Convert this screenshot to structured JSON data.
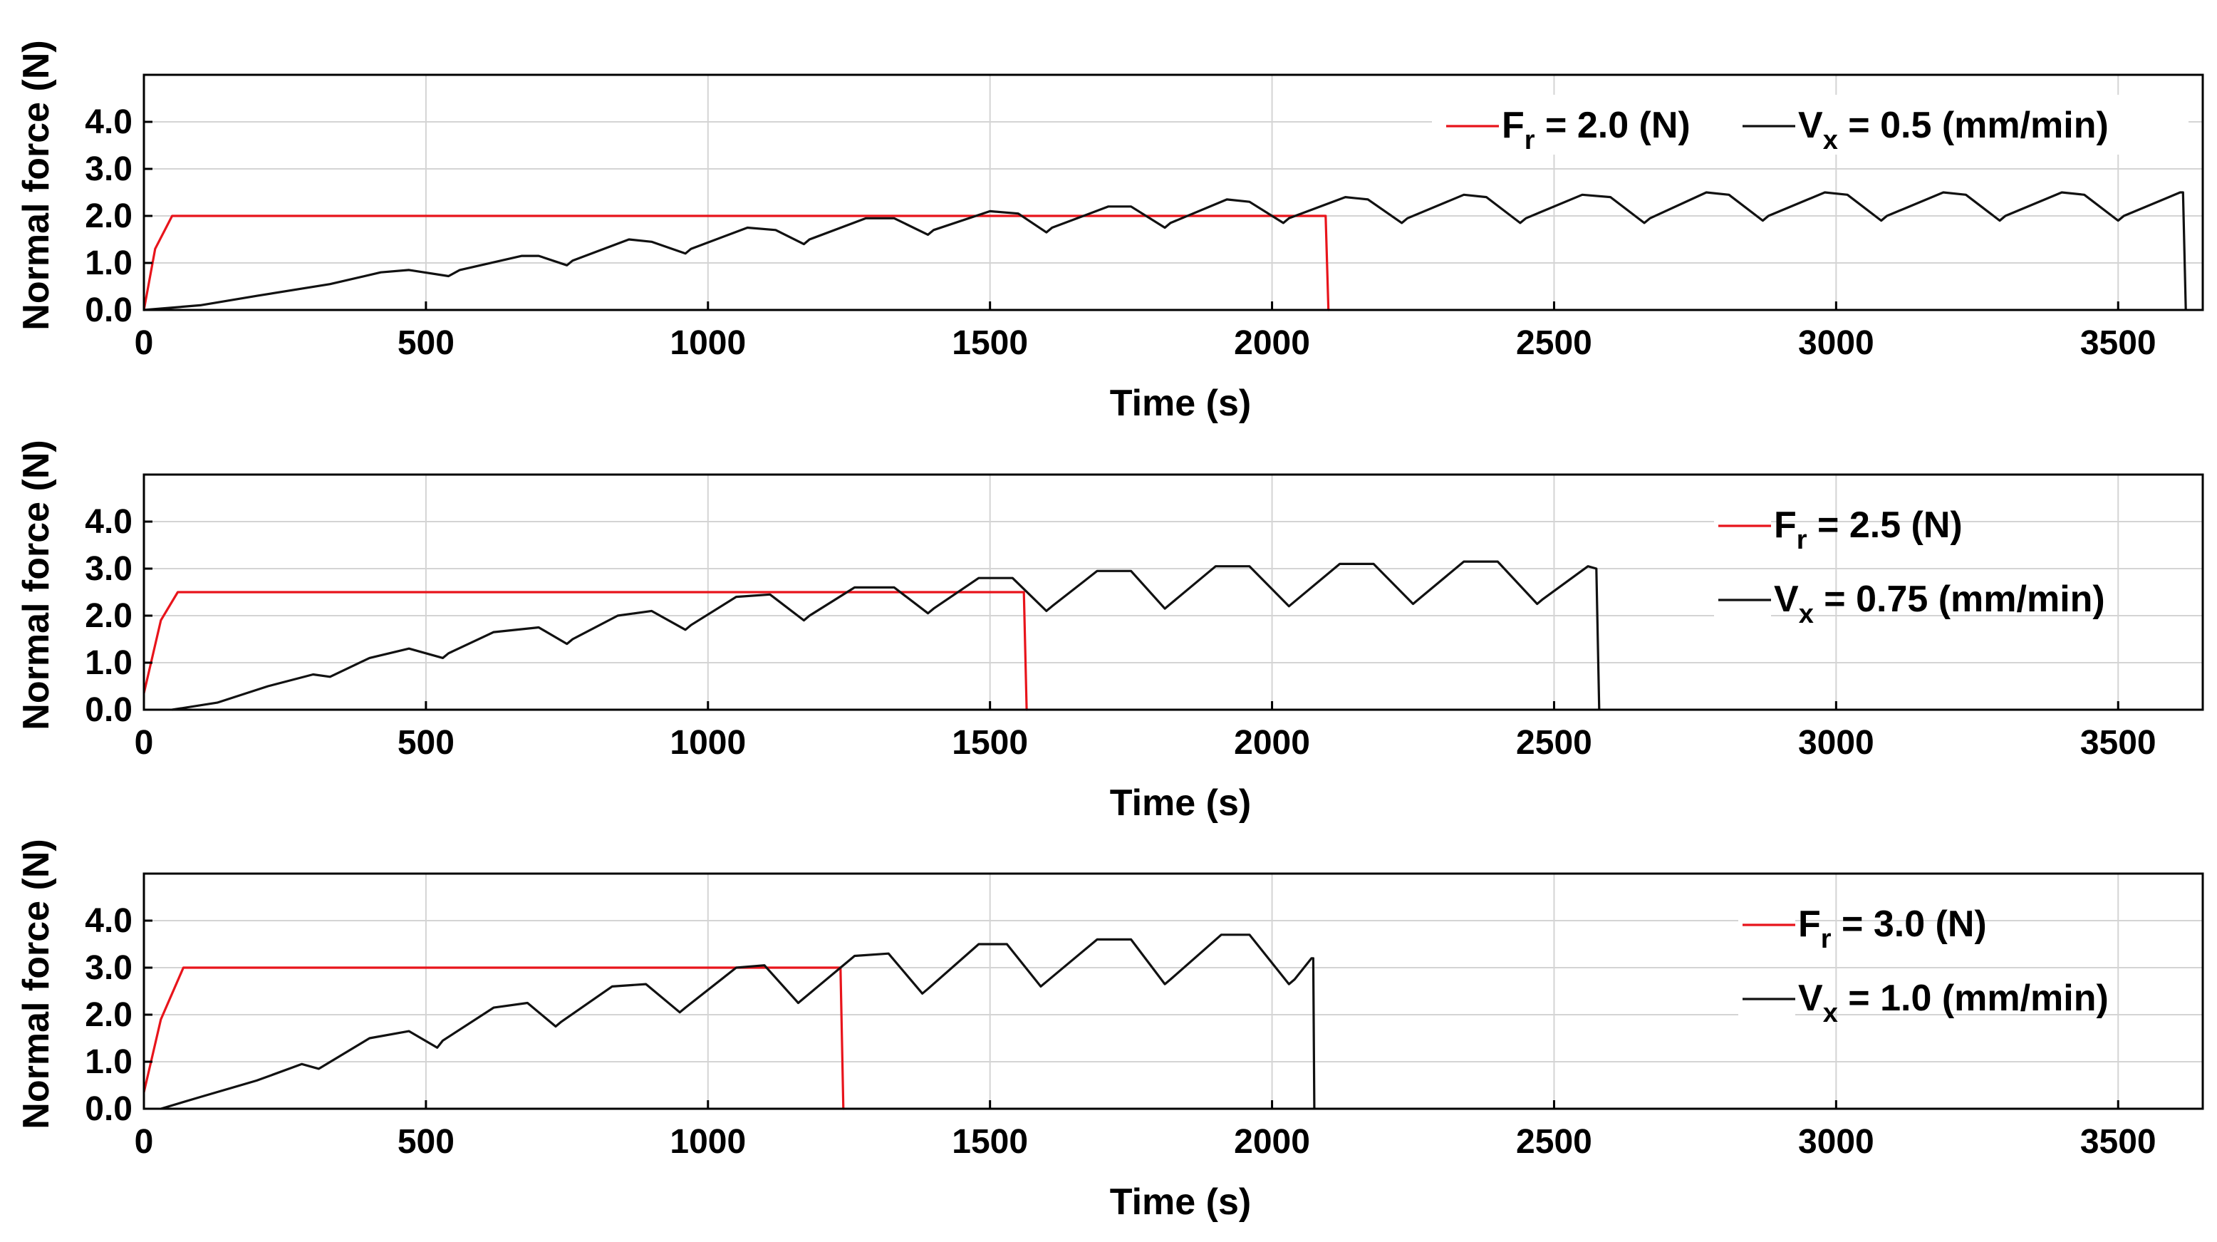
{
  "chart_data": [
    {
      "type": "line",
      "xlabel": "Time (s)",
      "ylabel": "Normal force (N)",
      "xlim": [
        0,
        3650
      ],
      "ylim": [
        0,
        5
      ],
      "xticks": [
        "0",
        "500",
        "1000",
        "1500",
        "2000",
        "2500",
        "3000",
        "3500"
      ],
      "yticks": [
        "0.0",
        "1.0",
        "2.0",
        "3.0",
        "4.0"
      ],
      "grid": true,
      "legend_position": "top-right",
      "legend_layout": "row",
      "series": [
        {
          "name": "Fr",
          "legend_main": "F",
          "legend_sub": "r",
          "legend_value": " = 2.0 (N)",
          "color": "#e8141b",
          "x": [
            0,
            20,
            50,
            60,
            2095,
            2100,
            2101
          ],
          "y": [
            0,
            1.3,
            2.0,
            2.0,
            2.0,
            0.0,
            0.0
          ]
        },
        {
          "name": "Vx",
          "legend_main": "V",
          "legend_sub": "x",
          "legend_value": " = 0.5 (mm/min)",
          "color": "#111111",
          "x": [
            0,
            100,
            200,
            330,
            420,
            470,
            540,
            560,
            670,
            700,
            750,
            760,
            860,
            900,
            960,
            970,
            1070,
            1120,
            1170,
            1180,
            1280,
            1330,
            1390,
            1400,
            1500,
            1550,
            1600,
            1610,
            1710,
            1750,
            1810,
            1820,
            1920,
            1960,
            2020,
            2030,
            2130,
            2170,
            2230,
            2240,
            2340,
            2380,
            2440,
            2450,
            2550,
            2600,
            2660,
            2670,
            2770,
            2810,
            2870,
            2880,
            2980,
            3020,
            3080,
            3090,
            3190,
            3230,
            3290,
            3300,
            3400,
            3440,
            3500,
            3510,
            3610,
            3615,
            3620
          ],
          "y": [
            0,
            0.1,
            0.3,
            0.55,
            0.8,
            0.85,
            0.72,
            0.85,
            1.15,
            1.15,
            0.95,
            1.05,
            1.5,
            1.45,
            1.2,
            1.3,
            1.75,
            1.7,
            1.4,
            1.5,
            1.95,
            1.95,
            1.6,
            1.7,
            2.1,
            2.05,
            1.65,
            1.75,
            2.2,
            2.2,
            1.75,
            1.85,
            2.35,
            2.3,
            1.85,
            1.95,
            2.4,
            2.35,
            1.85,
            1.95,
            2.45,
            2.4,
            1.85,
            1.95,
            2.45,
            2.4,
            1.85,
            1.95,
            2.5,
            2.45,
            1.9,
            2.0,
            2.5,
            2.45,
            1.9,
            2.0,
            2.5,
            2.45,
            1.9,
            2.0,
            2.5,
            2.45,
            1.9,
            2.0,
            2.5,
            2.5,
            0.0
          ]
        }
      ]
    },
    {
      "type": "line",
      "xlabel": "Time (s)",
      "ylabel": "Normal force (N)",
      "xlim": [
        0,
        3650
      ],
      "ylim": [
        0,
        5
      ],
      "xticks": [
        "0",
        "500",
        "1000",
        "1500",
        "2000",
        "2500",
        "3000",
        "3500"
      ],
      "yticks": [
        "0.0",
        "1.0",
        "2.0",
        "3.0",
        "4.0"
      ],
      "grid": true,
      "legend_position": "top-right",
      "legend_layout": "column",
      "series": [
        {
          "name": "Fr",
          "legend_main": "F",
          "legend_sub": "r",
          "legend_value": " = 2.5 (N)",
          "color": "#e8141b",
          "x": [
            0,
            30,
            60,
            70,
            1560,
            1565,
            1566
          ],
          "y": [
            0.35,
            1.9,
            2.5,
            2.5,
            2.5,
            0.0,
            0.0
          ]
        },
        {
          "name": "Vx",
          "legend_main": "V",
          "legend_sub": "x",
          "legend_value": " = 0.75 (mm/min)",
          "color": "#111111",
          "x": [
            50,
            130,
            220,
            300,
            330,
            400,
            470,
            530,
            540,
            620,
            700,
            750,
            760,
            840,
            900,
            960,
            970,
            1050,
            1110,
            1170,
            1180,
            1260,
            1330,
            1390,
            1400,
            1480,
            1540,
            1600,
            1610,
            1690,
            1750,
            1810,
            1820,
            1900,
            1960,
            2030,
            2040,
            2120,
            2180,
            2250,
            2260,
            2340,
            2400,
            2470,
            2480,
            2560,
            2575,
            2580
          ],
          "y": [
            0,
            0.15,
            0.5,
            0.75,
            0.7,
            1.1,
            1.3,
            1.1,
            1.2,
            1.65,
            1.75,
            1.4,
            1.5,
            2.0,
            2.1,
            1.7,
            1.8,
            2.4,
            2.45,
            1.9,
            2.0,
            2.6,
            2.6,
            2.05,
            2.15,
            2.8,
            2.8,
            2.1,
            2.2,
            2.95,
            2.95,
            2.15,
            2.25,
            3.05,
            3.05,
            2.2,
            2.3,
            3.1,
            3.1,
            2.25,
            2.35,
            3.15,
            3.15,
            2.25,
            2.35,
            3.05,
            3.0,
            0.0
          ]
        }
      ]
    },
    {
      "type": "line",
      "xlabel": "Time (s)",
      "ylabel": "Normal force (N)",
      "xlim": [
        0,
        3650
      ],
      "ylim": [
        0,
        5
      ],
      "xticks": [
        "0",
        "500",
        "1000",
        "1500",
        "2000",
        "2500",
        "3000",
        "3500"
      ],
      "yticks": [
        "0.0",
        "1.0",
        "2.0",
        "3.0",
        "4.0"
      ],
      "grid": true,
      "legend_position": "top-right",
      "legend_layout": "column",
      "series": [
        {
          "name": "Fr",
          "legend_main": "F",
          "legend_sub": "r",
          "legend_value": " = 3.0 (N)",
          "color": "#e8141b",
          "x": [
            0,
            30,
            70,
            80,
            1235,
            1240,
            1241
          ],
          "y": [
            0.35,
            1.9,
            3.0,
            3.0,
            3.0,
            0.0,
            0.0
          ]
        },
        {
          "name": "Vx",
          "legend_main": "V",
          "legend_sub": "x",
          "legend_value": " = 1.0 (mm/min)",
          "color": "#111111",
          "x": [
            30,
            100,
            200,
            280,
            310,
            400,
            470,
            520,
            530,
            620,
            680,
            730,
            740,
            830,
            890,
            950,
            960,
            1050,
            1100,
            1160,
            1170,
            1260,
            1320,
            1380,
            1390,
            1480,
            1530,
            1590,
            1600,
            1690,
            1750,
            1810,
            1820,
            1910,
            1960,
            2030,
            2040,
            2070,
            2073,
            2075
          ],
          "y": [
            0,
            0.25,
            0.6,
            0.95,
            0.85,
            1.5,
            1.65,
            1.3,
            1.45,
            2.15,
            2.25,
            1.75,
            1.85,
            2.6,
            2.65,
            2.05,
            2.15,
            3.0,
            3.05,
            2.25,
            2.35,
            3.25,
            3.3,
            2.45,
            2.55,
            3.5,
            3.5,
            2.6,
            2.7,
            3.6,
            3.6,
            2.65,
            2.75,
            3.7,
            3.7,
            2.65,
            2.75,
            3.2,
            3.2,
            0.0
          ]
        }
      ]
    }
  ]
}
